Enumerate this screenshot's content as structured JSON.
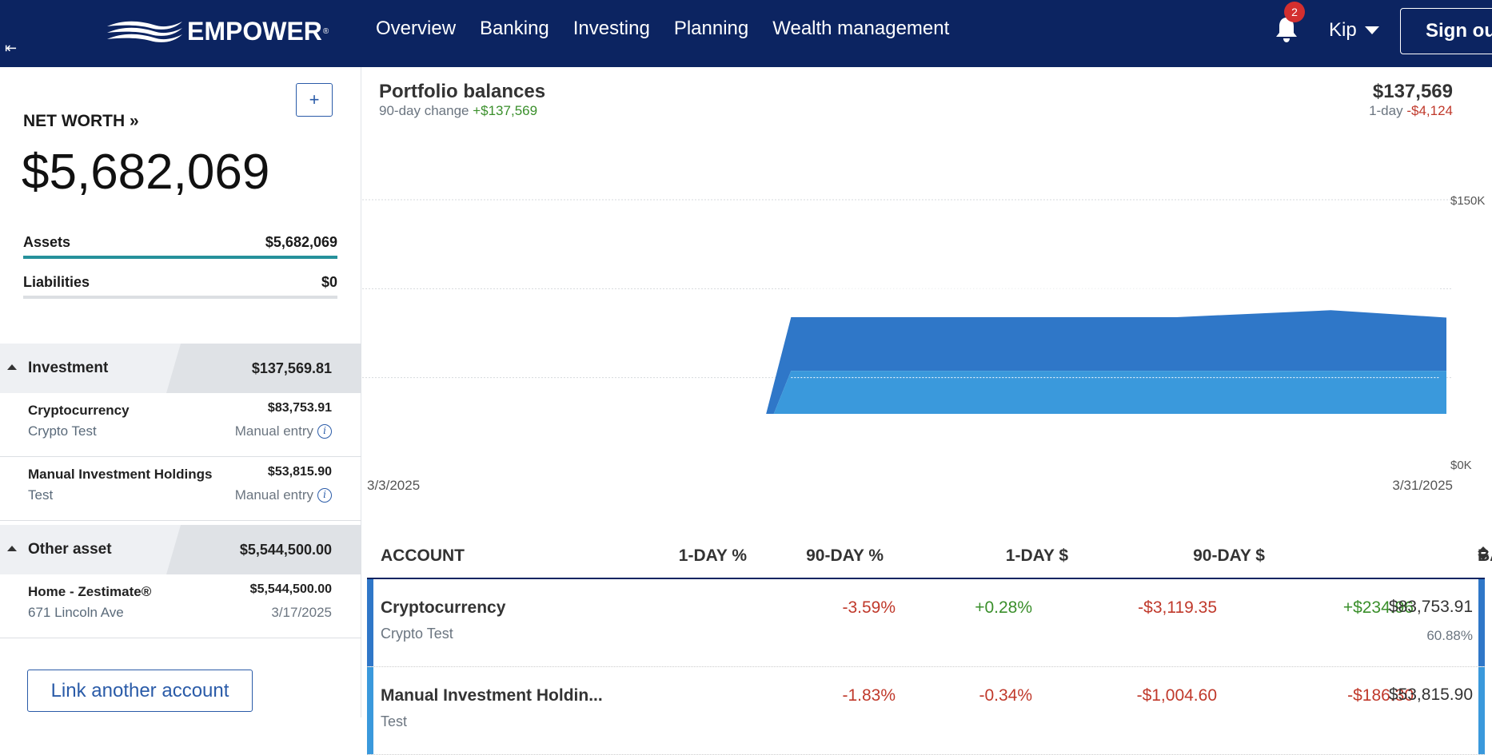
{
  "brand": {
    "name": "EMPOWER",
    "mark": "®"
  },
  "nav": {
    "items": [
      "Overview",
      "Banking",
      "Investing",
      "Planning",
      "Wealth management"
    ],
    "notifications_count": "2",
    "user": "Kip",
    "sign_out": "Sign out"
  },
  "sidebar": {
    "add_label": "+",
    "net_worth_label": "NET WORTH »",
    "net_worth_value": "$5,682,069",
    "assets_label": "Assets",
    "assets_value": "$5,682,069",
    "liabilities_label": "Liabilities",
    "liabilities_value": "$0",
    "groups": [
      {
        "name": "Investment",
        "total": "$137,569.81",
        "accounts": [
          {
            "name": "Cryptocurrency",
            "sub": "Crypto Test",
            "value": "$83,753.91",
            "meta": "Manual entry"
          },
          {
            "name": "Manual Investment Holdings",
            "sub": "Test",
            "value": "$53,815.90",
            "meta": "Manual entry"
          }
        ]
      },
      {
        "name": "Other asset",
        "total": "$5,544,500.00",
        "accounts": [
          {
            "name": "Home - Zestimate®",
            "sub": "671 Lincoln Ave",
            "value": "$5,544,500.00",
            "meta": "3/17/2025"
          }
        ]
      }
    ],
    "link_button": "Link another account"
  },
  "portfolio": {
    "title": "Portfolio balances",
    "change_label": "90-day change",
    "change_value": "+$137,569",
    "total": "$137,569",
    "day_label": "1-day",
    "day_value": "-$4,124"
  },
  "chart_data": {
    "type": "area",
    "stacked": true,
    "x_start_label": "3/3/2025",
    "x_end_label": "3/31/2025",
    "y_tick_labels": [
      "$0K",
      "$150K"
    ],
    "ylim": [
      0,
      150000
    ],
    "x": [
      "3/3",
      "3/10",
      "3/13",
      "3/14",
      "3/20",
      "3/24",
      "3/28",
      "3/31"
    ],
    "series": [
      {
        "color": "#3a99dc",
        "values": [
          0,
          0,
          0,
          53816,
          53816,
          53816,
          53816,
          53816
        ]
      },
      {
        "color": "#2f77c8",
        "values": [
          0,
          0,
          0,
          84000,
          84000,
          84000,
          87900,
          83754
        ]
      }
    ],
    "colors": {
      "lower": "#3a99dc",
      "upper": "#2f77c8",
      "axis": "#5f6f7f",
      "grid": "#d6d9dd"
    },
    "grid": true
  },
  "table": {
    "headers": {
      "account": "ACCOUNT",
      "day_pct": "1-DAY %",
      "ninety_pct": "90-DAY %",
      "day_amt": "1-DAY $",
      "ninety_amt": "90-DAY $",
      "balance": "BALANCE"
    },
    "rows": [
      {
        "name": "Cryptocurrency",
        "sub": "Crypto Test",
        "day_pct": "-3.59%",
        "ninety_pct": "+0.28%",
        "day_amt": "-$3,119.35",
        "ninety_amt": "+$234.96",
        "balance": "$83,753.91",
        "share": "60.88%",
        "color": "#2f77c8"
      },
      {
        "name": "Manual Investment Holdin...",
        "sub": "Test",
        "day_pct": "-1.83%",
        "ninety_pct": "-0.34%",
        "day_amt": "-$1,004.60",
        "ninety_amt": "-$186.30",
        "balance": "$53,815.90",
        "share": "",
        "color": "#3a99dc"
      }
    ]
  }
}
